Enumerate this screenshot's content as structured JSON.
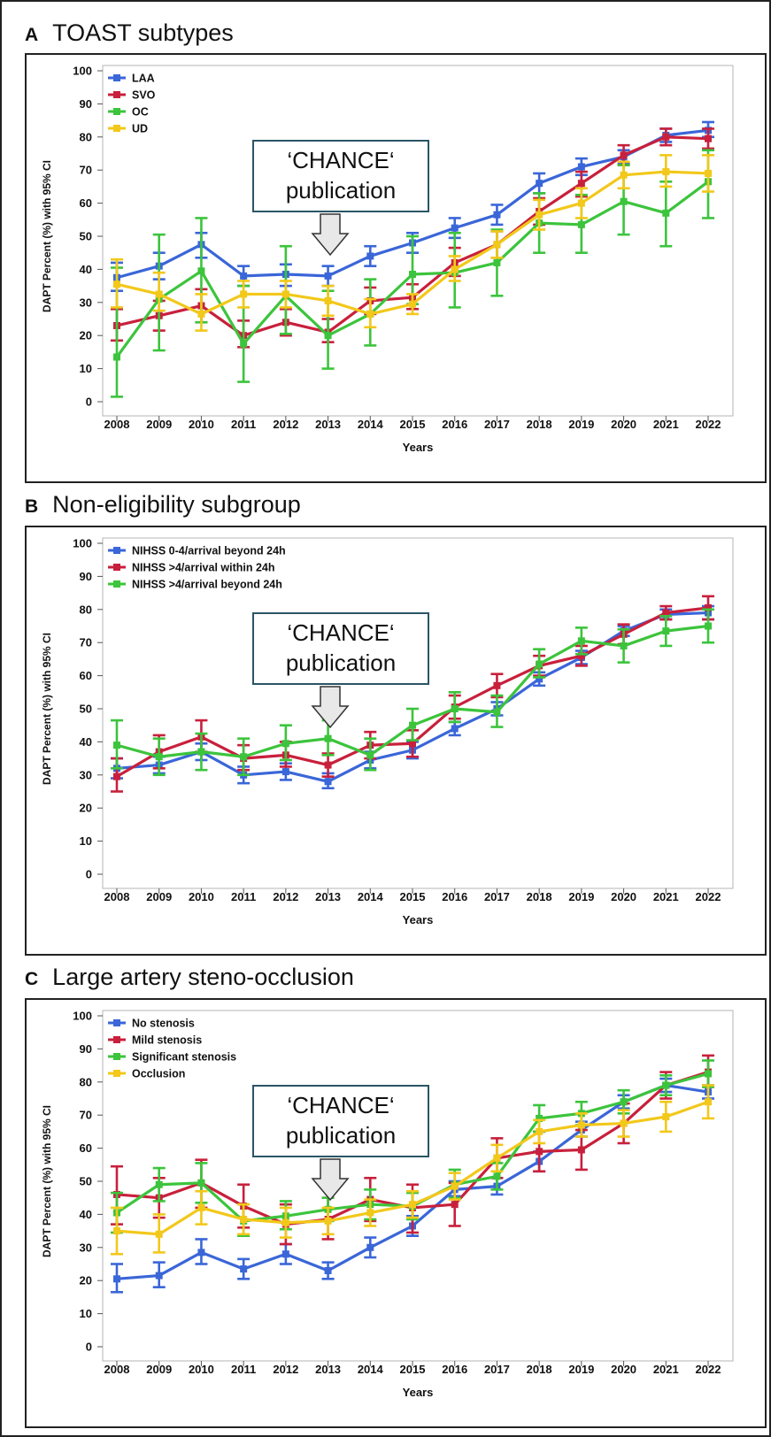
{
  "panels": [
    {
      "letter": "A",
      "title": "TOAST subtypes",
      "annotation": [
        "‘CHANCE‘",
        "publication"
      ]
    },
    {
      "letter": "B",
      "title": "Non-eligibility subgroup",
      "annotation": [
        "‘CHANCE‘",
        "publication"
      ]
    },
    {
      "letter": "C",
      "title": "Large artery steno-occlusion",
      "annotation": [
        "‘CHANCE‘",
        "publication"
      ]
    }
  ],
  "colors": {
    "blue": "#3a66d8",
    "red": "#c8203c",
    "green": "#3cc43c",
    "yellow": "#f2c81a",
    "arrow": "#e8e8e8"
  },
  "chart_data": [
    {
      "type": "line",
      "title": "TOAST subtypes",
      "xlabel": "Years",
      "ylabel": "DAPT Percent (%) with 95% CI",
      "ylim": [
        0,
        100
      ],
      "yticks": [
        0,
        10,
        20,
        30,
        40,
        50,
        60,
        70,
        80,
        90,
        100
      ],
      "x": [
        2008,
        2009,
        2010,
        2011,
        2012,
        2013,
        2014,
        2015,
        2016,
        2017,
        2018,
        2019,
        2020,
        2021,
        2022
      ],
      "legend_position": "top-left",
      "grid": false,
      "series": [
        {
          "name": "LAA",
          "color": "#3a66d8",
          "values": [
            37.5,
            41,
            47.5,
            38,
            38.5,
            38,
            44,
            48,
            52.5,
            56.5,
            66,
            71,
            74,
            80.5,
            82
          ],
          "lower": [
            33.5,
            37,
            43.5,
            35,
            35,
            35,
            41,
            45,
            49.5,
            53.5,
            63,
            68.5,
            72,
            78.5,
            80
          ],
          "upper": [
            42,
            45,
            51,
            41,
            41.5,
            41,
            47,
            51,
            55.5,
            59.5,
            69,
            73.5,
            76,
            82.5,
            84.5
          ]
        },
        {
          "name": "SVO",
          "color": "#c8203c",
          "values": [
            23,
            26,
            29,
            20,
            24,
            21,
            30.5,
            31.5,
            42,
            47.5,
            57.5,
            66,
            74.5,
            80,
            79.5
          ],
          "lower": [
            18.5,
            21.5,
            24,
            16.5,
            20,
            18,
            26.5,
            28,
            38,
            43.5,
            53.5,
            62,
            71.5,
            77.5,
            76.5
          ],
          "upper": [
            28,
            30.5,
            34,
            24.5,
            28,
            25,
            34.5,
            35.5,
            46.5,
            51.5,
            61.5,
            69.5,
            77.5,
            82.5,
            82.5
          ]
        },
        {
          "name": "OC",
          "color": "#3cc43c",
          "values": [
            13.5,
            31,
            39.5,
            17.5,
            32,
            20,
            26.5,
            38.5,
            39,
            42,
            54,
            53.5,
            60.5,
            57,
            66.5
          ],
          "lower": [
            1.5,
            15.5,
            24,
            6,
            20.5,
            10,
            17,
            29.5,
            28.5,
            32,
            45,
            45,
            50.5,
            47,
            55.5
          ],
          "upper": [
            40.5,
            50.5,
            55.5,
            35,
            47,
            33.5,
            37,
            50,
            51,
            52,
            63,
            62.5,
            71.5,
            66.5,
            76
          ]
        },
        {
          "name": "UD",
          "color": "#f2c81a",
          "values": [
            35.5,
            32.5,
            26.5,
            32.5,
            32.5,
            30.5,
            26.5,
            29.5,
            40,
            47.5,
            56.5,
            60,
            68.5,
            69.5,
            69
          ],
          "lower": [
            28.5,
            27.5,
            21.5,
            28.5,
            28.5,
            26,
            22.5,
            26.5,
            36.5,
            43.5,
            52,
            55.5,
            64.5,
            65,
            63.5
          ],
          "upper": [
            43,
            39,
            32.5,
            36.5,
            36.5,
            35,
            31,
            32.5,
            44,
            51.5,
            61,
            64.5,
            72.5,
            74.5,
            74.5
          ]
        }
      ]
    },
    {
      "type": "line",
      "title": "Non-eligibility subgroup",
      "xlabel": "Years",
      "ylabel": "DAPT Percent (%) with 95% CI",
      "ylim": [
        0,
        100
      ],
      "yticks": [
        0,
        10,
        20,
        30,
        40,
        50,
        60,
        70,
        80,
        90,
        100
      ],
      "x": [
        2008,
        2009,
        2010,
        2011,
        2012,
        2013,
        2014,
        2015,
        2016,
        2017,
        2018,
        2019,
        2020,
        2021,
        2022
      ],
      "legend_position": "top-left",
      "grid": false,
      "series": [
        {
          "name": "NIHSS 0-4/arrival beyond 24h",
          "color": "#3a66d8",
          "values": [
            32,
            33,
            37,
            30,
            31,
            28,
            34.5,
            37.5,
            44,
            50,
            59,
            65.5,
            73.5,
            78.5,
            79
          ],
          "lower": [
            29,
            30.5,
            34.5,
            27.5,
            28.5,
            26,
            32,
            35,
            42,
            48,
            57,
            63.5,
            72,
            77,
            77
          ],
          "upper": [
            35,
            35.5,
            39.5,
            32.5,
            33.5,
            30.5,
            37,
            40,
            46,
            52,
            61,
            67.5,
            75,
            80,
            81
          ]
        },
        {
          "name": "NIHSS >4/arrival within 24h",
          "color": "#c8203c",
          "values": [
            29.5,
            37,
            41.5,
            35,
            36,
            33,
            39,
            39.5,
            50.5,
            57,
            63,
            66,
            72.5,
            79,
            80.5
          ],
          "lower": [
            25,
            32,
            37,
            31.5,
            32.5,
            29.5,
            35,
            35.5,
            47,
            53.5,
            60,
            63,
            69.5,
            77,
            77
          ],
          "upper": [
            35,
            42,
            46.5,
            39,
            40,
            36.5,
            43,
            43.5,
            54,
            60.5,
            66,
            69,
            75.5,
            81,
            84
          ]
        },
        {
          "name": "NIHSS >4/arrival beyond 24h",
          "color": "#3cc43c",
          "values": [
            39,
            35.5,
            37,
            35.5,
            39.5,
            41,
            36,
            45,
            50,
            49,
            63.5,
            70.5,
            69,
            73.5,
            75
          ],
          "lower": [
            32,
            30,
            31.5,
            30,
            34.5,
            36,
            31.5,
            40.5,
            46,
            44.5,
            59.5,
            66.5,
            64,
            69,
            70
          ],
          "upper": [
            46.5,
            41,
            42.5,
            41,
            45,
            46.5,
            41,
            50,
            55,
            54,
            68,
            74.5,
            74,
            78,
            80
          ]
        }
      ]
    },
    {
      "type": "line",
      "title": "Large artery steno-occlusion",
      "xlabel": "Years",
      "ylabel": "DAPT Percent (%) with 95% CI",
      "ylim": [
        0,
        100
      ],
      "yticks": [
        0,
        10,
        20,
        30,
        40,
        50,
        60,
        70,
        80,
        90,
        100
      ],
      "x": [
        2008,
        2009,
        2010,
        2011,
        2012,
        2013,
        2014,
        2015,
        2016,
        2017,
        2018,
        2019,
        2020,
        2021,
        2022
      ],
      "legend_position": "top-left",
      "grid": false,
      "series": [
        {
          "name": "No stenosis",
          "color": "#3a66d8",
          "values": [
            20.5,
            21.5,
            28.5,
            23.5,
            28,
            23,
            30,
            36.5,
            47.5,
            48.5,
            56,
            65.5,
            74,
            79,
            77
          ],
          "lower": [
            16.5,
            18,
            25,
            20.5,
            25,
            20.5,
            27,
            33.5,
            45.5,
            46,
            53,
            63.5,
            72,
            77,
            75
          ],
          "upper": [
            25,
            25.5,
            32.5,
            26.5,
            31,
            25.5,
            33,
            39.5,
            50,
            51,
            59,
            68,
            76,
            81,
            79
          ]
        },
        {
          "name": "Mild stenosis",
          "color": "#c8203c",
          "values": [
            46,
            45,
            49.5,
            42.5,
            37,
            38.5,
            44.5,
            42,
            43,
            57,
            59,
            59.5,
            67.5,
            79,
            83
          ],
          "lower": [
            37,
            39,
            42,
            36,
            31,
            32.5,
            38,
            34.5,
            36.5,
            51,
            53,
            53.5,
            61.5,
            75,
            78.5
          ],
          "upper": [
            54.5,
            51,
            56.5,
            49,
            43,
            45,
            51,
            49,
            49.5,
            63,
            65,
            65.5,
            73.5,
            83,
            88
          ]
        },
        {
          "name": "Significant stenosis",
          "color": "#3cc43c",
          "values": [
            40.5,
            49,
            49.5,
            38,
            39.5,
            41.5,
            43,
            42.5,
            49,
            51.5,
            69,
            70.5,
            74,
            79,
            82.5
          ],
          "lower": [
            34.5,
            44,
            43.5,
            33.5,
            35.5,
            38,
            38.5,
            38.5,
            45,
            47.5,
            65,
            67,
            70.5,
            76,
            78.5
          ],
          "upper": [
            46.5,
            54,
            55.5,
            43,
            44,
            45,
            47.5,
            46.5,
            53.5,
            55.5,
            73,
            74,
            77.5,
            82,
            86.5
          ]
        },
        {
          "name": "Occlusion",
          "color": "#f2c81a",
          "values": [
            35,
            34,
            42,
            38.5,
            37.5,
            38,
            40.5,
            43,
            48.5,
            57,
            65,
            67,
            67.5,
            69.5,
            74
          ],
          "lower": [
            28,
            28.5,
            37,
            34,
            33,
            34,
            36.5,
            39,
            44.5,
            53,
            61.5,
            63.5,
            63.5,
            65,
            69
          ],
          "upper": [
            42,
            40,
            47,
            43,
            42,
            42,
            44.5,
            47,
            52.5,
            61,
            68.5,
            70.5,
            71.5,
            74,
            79
          ]
        }
      ]
    }
  ]
}
